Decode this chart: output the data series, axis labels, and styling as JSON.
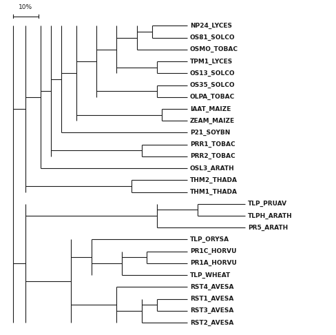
{
  "background_color": "#ffffff",
  "line_color": "#1a1a1a",
  "font_size": 6.5,
  "scale_label": "10%",
  "taxa_order": [
    "NP24_LYCES",
    "OS81_SOLCO",
    "OSMO_TOBAC",
    "TPM1_LYCES",
    "OS13_SOLCO",
    "OS35_SOLCO",
    "OLPA_TOBAC",
    "IAAT_MAIZE",
    "ZEAM_MAIZE",
    "P21_SOYBN",
    "PRR1_TOBAC",
    "PRR2_TOBAC",
    "OSL3_ARATH",
    "THM2_THADA",
    "THM1_THADA",
    "TLP_PRUAV",
    "TLPH_ARATH",
    "PR5_ARATH",
    "TLP_ORYSA",
    "PR1C_HORVU",
    "PR1A_HORVU",
    "TLP_WHEAT",
    "RST4_AVESA",
    "RST1_AVESA",
    "RST3_AVESA",
    "RST2_AVESA"
  ]
}
